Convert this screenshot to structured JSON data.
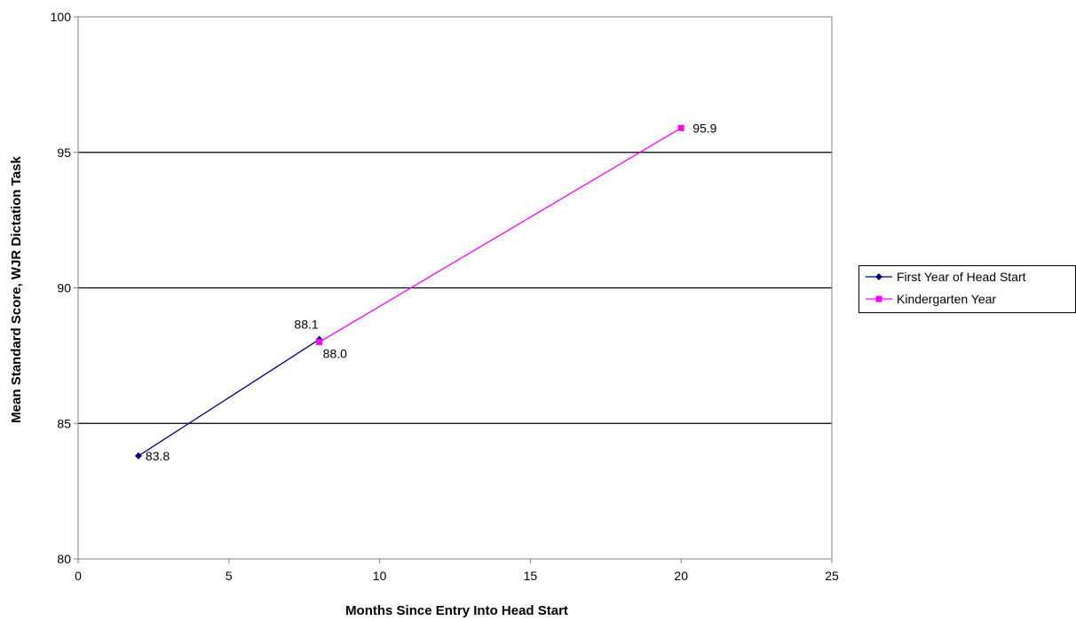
{
  "chart_data": {
    "type": "line",
    "title": "",
    "xlabel": "Months Since Entry Into Head Start",
    "ylabel": "Mean Standard Score, WJR Dictation Task",
    "xlim": [
      0,
      25
    ],
    "ylim": [
      80,
      100
    ],
    "xticks": [
      "0",
      "5",
      "10",
      "15",
      "20",
      "25"
    ],
    "yticks": [
      "80",
      "85",
      "90",
      "95",
      "100"
    ],
    "grid": "horizontal",
    "legend_position": "right",
    "series": [
      {
        "name": "First Year of Head Start",
        "color": "#000080",
        "marker": "diamond",
        "x": [
          2,
          8
        ],
        "y": [
          83.8,
          88.1
        ],
        "labels": [
          "83.8",
          "88.1"
        ]
      },
      {
        "name": "Kindergarten Year",
        "color": "#ff00ff",
        "marker": "square",
        "x": [
          8,
          20
        ],
        "y": [
          88.0,
          95.9
        ],
        "labels": [
          "88.0",
          "95.9"
        ]
      }
    ]
  }
}
